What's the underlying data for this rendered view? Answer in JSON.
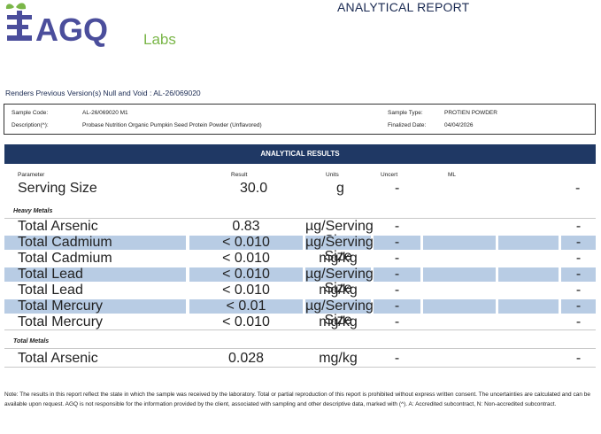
{
  "header": {
    "logo_text": "AGQ",
    "logo_sub": "Labs",
    "title": "ANALYTICAL REPORT"
  },
  "renders_line": "Renders Previous Version(s) Null and Void : AL-26/069020",
  "sample": {
    "code_label": "Sample Code:",
    "code_value": "AL-26/069020  M1",
    "desc_label": "Description(^):",
    "desc_value": "Probase Nutrition Organic Pumpkin Seed Protein Powder (Unflavored)",
    "type_label": "Sample Type:",
    "type_value": "PROTIEN POWDER",
    "final_label": "Finalized Date:",
    "final_value": "04/04/2026"
  },
  "results_title": "ANALYTICAL RESULTS",
  "columns": {
    "parameter": "Parameter",
    "result": "Result",
    "units": "Units",
    "uncert": "Uncert",
    "ml": "ML"
  },
  "serving": {
    "parameter": "Serving Size",
    "result": "30.0",
    "units": "g",
    "uncert": "-",
    "last": "-"
  },
  "heavy_metals_label": "Heavy Metals",
  "heavy_rows": [
    {
      "parameter": "Total Arsenic",
      "result": "0.83",
      "units": "µg/Serving Size",
      "uncert": "-",
      "last": "-"
    },
    {
      "parameter": "Total Cadmium",
      "result": "< 0.010",
      "units": "µg/Serving Size",
      "uncert": "-",
      "last": "-"
    },
    {
      "parameter": "Total Cadmium",
      "result": "< 0.010",
      "units": "mg/kg",
      "uncert": "-",
      "last": "-"
    },
    {
      "parameter": "Total Lead",
      "result": "< 0.010",
      "units": "µg/Serving Size",
      "uncert": "-",
      "last": "-"
    },
    {
      "parameter": "Total Lead",
      "result": "< 0.010",
      "units": "mg/kg",
      "uncert": "-",
      "last": "-"
    },
    {
      "parameter": "Total Mercury",
      "result": "< 0.01",
      "units": "µg/Serving Size",
      "uncert": "-",
      "last": "-"
    },
    {
      "parameter": "Total Mercury",
      "result": "< 0.010",
      "units": "mg/kg",
      "uncert": "-",
      "last": "-"
    }
  ],
  "total_metals_label": "Total Metals",
  "total_rows": [
    {
      "parameter": "Total Arsenic",
      "result": "0.028",
      "units": "mg/kg",
      "uncert": "-",
      "last": "-"
    }
  ],
  "note": "Note: The results in this report reflect the state in which the sample was received by the laboratory. Total or partial reproduction of this report is prohibited without express written consent. The uncertainties are calculated and can be available upon request. AGQ is not responsible for the information provided by the client, associated with sampling and other descriptive data, marked with (^). A: Accredited subcontract, N: Non-accredited subcontract."
}
